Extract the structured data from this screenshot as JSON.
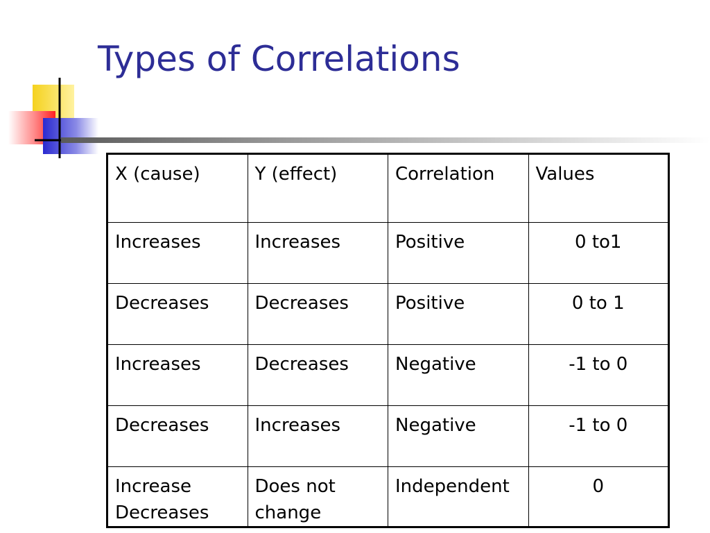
{
  "slide": {
    "title": "Types of Correlations"
  },
  "table": {
    "headers": [
      "X (cause)",
      "Y (effect)",
      "Correlation",
      "Values"
    ],
    "rows": [
      [
        "Increases",
        "Increases",
        "Positive",
        "0 to1"
      ],
      [
        "Decreases",
        "Decreases",
        "Positive",
        "0 to 1"
      ],
      [
        "Increases",
        "Decreases",
        "Negative",
        "-1 to 0"
      ],
      [
        "Decreases",
        "Increases",
        "Negative",
        "-1 to 0"
      ]
    ],
    "last_row": {
      "x_line1": "Increase",
      "x_line2": "Decreases",
      "y_line1": "Does not",
      "y_line2": "change",
      "correlation": "Independent",
      "values": "0"
    }
  },
  "colors": {
    "title": "#2d2d96",
    "deco_yellow": "#f5d21e",
    "deco_red": "#ff3030",
    "deco_blue": "#3232d2"
  }
}
